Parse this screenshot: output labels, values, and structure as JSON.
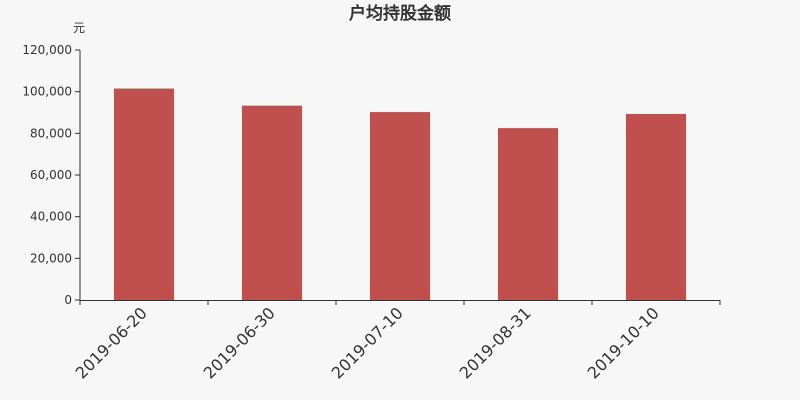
{
  "chart_data": {
    "type": "bar",
    "title": "户均持股金额",
    "ylabel": "元",
    "xlabel": "",
    "categories": [
      "2019-06-20",
      "2019-06-30",
      "2019-07-10",
      "2019-08-31",
      "2019-10-10"
    ],
    "values": [
      101500,
      93300,
      90200,
      82500,
      89300
    ],
    "ylim": [
      0,
      120000
    ],
    "yticks": [
      "0",
      "20,000",
      "40,000",
      "60,000",
      "80,000",
      "100,000",
      "120,000"
    ],
    "bar_color": "#c0504d",
    "grid": false,
    "legend": "none"
  }
}
